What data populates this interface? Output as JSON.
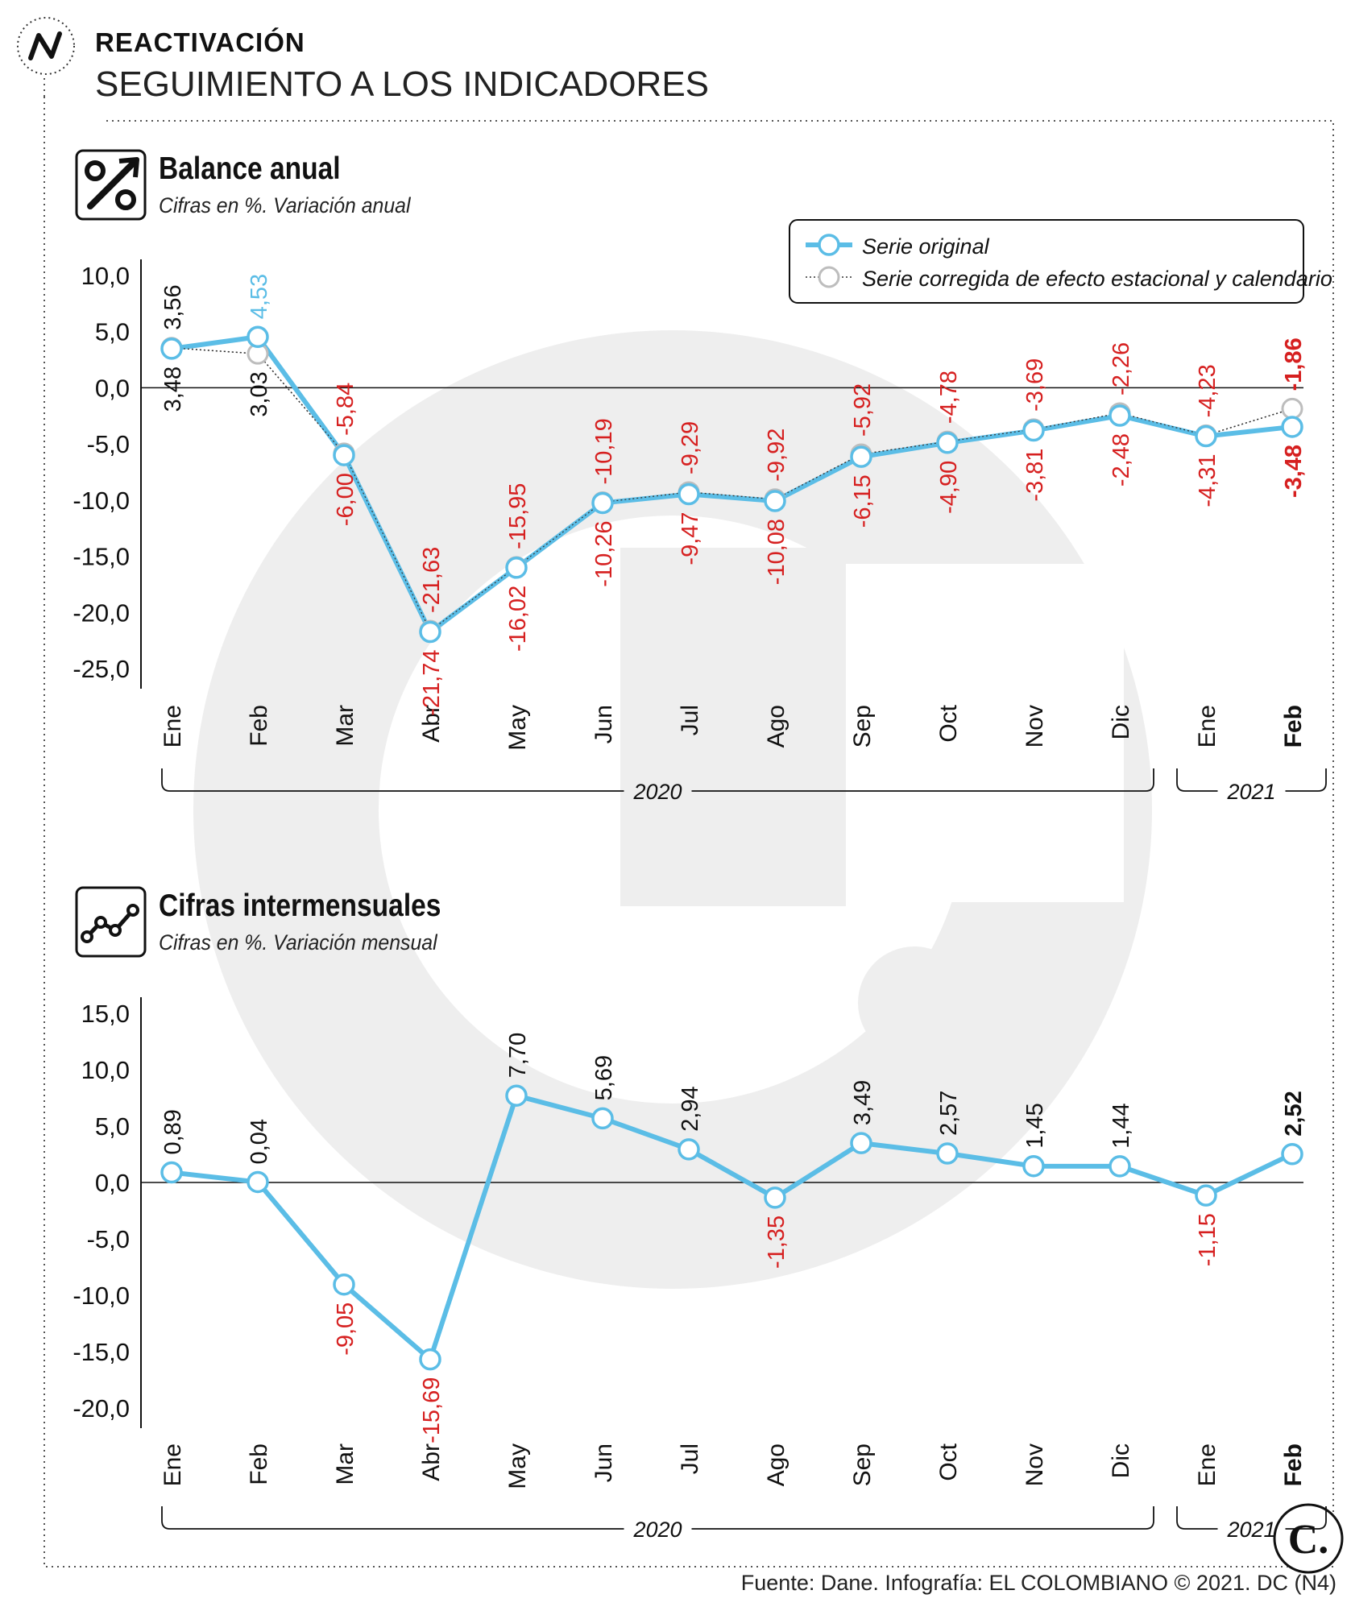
{
  "header": {
    "kicker": "REACTIVACIÓN",
    "title": "SEGUIMIENTO A LOS INDICADORES"
  },
  "footer": {
    "source": "Fuente: Dane. Infografía: EL COLOMBIANO © 2021. DC (N4)",
    "logo_letter": "C."
  },
  "colors": {
    "original": "#5bbde6",
    "corrected": "#bdbdbd",
    "negative_label": "#d62020",
    "positive_label_original": "#5bbde6",
    "text": "#111111",
    "watermark": "#eeeeee"
  },
  "chart_data": [
    {
      "type": "line",
      "title": "Balance anual",
      "subtitle": "Cifras en %. Variación anual",
      "icon": "percent-arrow-icon",
      "categories": [
        "Ene",
        "Feb",
        "Mar",
        "Abr",
        "May",
        "Jun",
        "Jul",
        "Ago",
        "Sep",
        "Oct",
        "Nov",
        "Dic",
        "Ene",
        "Feb"
      ],
      "year_groups": [
        {
          "label": "2020",
          "from": 0,
          "to": 11
        },
        {
          "label": "2021",
          "from": 12,
          "to": 13
        }
      ],
      "series": [
        {
          "name": "Serie original",
          "values": [
            3.48,
            4.53,
            -6.0,
            -21.74,
            -16.02,
            -10.26,
            -9.47,
            -10.08,
            -6.15,
            -4.9,
            -3.81,
            -2.48,
            -4.31,
            -3.48
          ],
          "labels": [
            "3,48",
            "4,53",
            "-6,00",
            "-21,74",
            "-16,02",
            "-10,26",
            "-9,47",
            "-10,08",
            "-6,15",
            "-4,90",
            "-3,81",
            "-2,48",
            "-4,31",
            "-3,48"
          ]
        },
        {
          "name": "Serie corregida de efecto estacional y calendario",
          "values": [
            3.56,
            3.03,
            -5.84,
            -21.63,
            -15.95,
            -10.19,
            -9.29,
            -9.92,
            -5.92,
            -4.78,
            -3.69,
            -2.26,
            -4.23,
            -1.86
          ],
          "labels": [
            "3,56",
            "3,03",
            "-5,84",
            "-21,63",
            "-15,95",
            "-10,19",
            "-9,29",
            "-9,92",
            "-5,92",
            "-4,78",
            "-3,69",
            "-2,26",
            "-4,23",
            "-1,86"
          ]
        }
      ],
      "y_ticks": [
        "10,0",
        "5,0",
        "0,0",
        "-5,0",
        "-10,0",
        "-15,0",
        "-20,0",
        "-25,0"
      ],
      "ylim": [
        -25,
        10
      ],
      "legend_placement": "top-right",
      "grid": false
    },
    {
      "type": "line",
      "title": "Cifras intermensuales",
      "subtitle": "Cifras en %. Variación mensual",
      "icon": "trend-line-icon",
      "categories": [
        "Ene",
        "Feb",
        "Mar",
        "Abr",
        "May",
        "Jun",
        "Jul",
        "Ago",
        "Sep",
        "Oct",
        "Nov",
        "Dic",
        "Ene",
        "Feb"
      ],
      "year_groups": [
        {
          "label": "2020",
          "from": 0,
          "to": 11
        },
        {
          "label": "2021",
          "from": 12,
          "to": 13
        }
      ],
      "series": [
        {
          "values": [
            0.89,
            0.04,
            -9.05,
            -15.69,
            7.7,
            5.69,
            2.94,
            -1.35,
            3.49,
            2.57,
            1.45,
            1.44,
            -1.15,
            2.52
          ],
          "labels": [
            "0,89",
            "0,04",
            "-9,05",
            "-15,69",
            "7,70",
            "5,69",
            "2,94",
            "-1,35",
            "3,49",
            "2,57",
            "1,45",
            "1,44",
            "-1,15",
            "2,52"
          ]
        }
      ],
      "y_ticks": [
        "15,0",
        "10,0",
        "5,0",
        "0,0",
        "-5,0",
        "-10,0",
        "-15,0",
        "-20,0"
      ],
      "ylim": [
        -20,
        15
      ],
      "grid": false
    }
  ]
}
